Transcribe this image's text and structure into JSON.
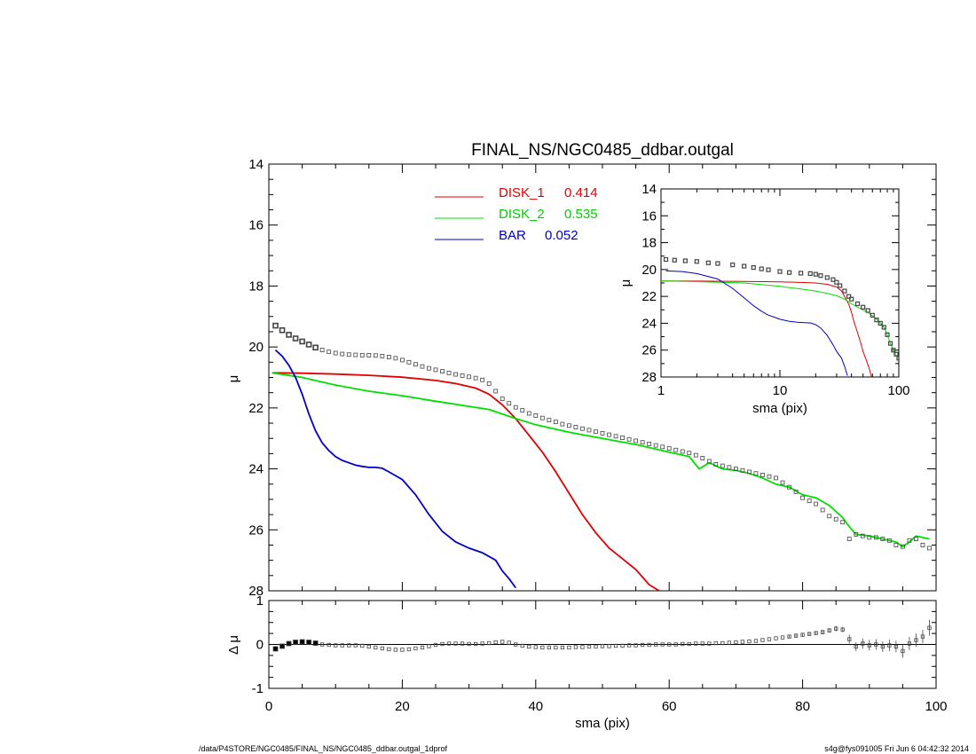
{
  "footer": {
    "left": "/data/P4STORE/NGC0485/FINAL_NS/NGC0485_ddbar.outgal_1dprof",
    "right": "s4g@fys091005  Fri Jun  6 04:42:32 2014"
  },
  "chart_data": [
    {
      "type": "line",
      "panel": "main",
      "title": "FINAL_NS/NGC0485_ddbar.outgal",
      "xlabel": "sma (pix)",
      "ylabel": "μ",
      "xlim": [
        0,
        100
      ],
      "ylim": [
        28,
        14
      ],
      "xticks": [
        "0",
        "20",
        "40",
        "60",
        "80",
        "100"
      ],
      "yticks": [
        "14",
        "16",
        "18",
        "20",
        "22",
        "24",
        "26",
        "28"
      ],
      "legend_position": "top-center",
      "data_markers": {
        "name": "data",
        "marker": "open-square",
        "x": [
          1,
          2,
          3,
          4,
          5,
          6,
          7,
          8,
          9,
          10,
          11,
          12,
          13,
          14,
          15,
          16,
          17,
          18,
          19,
          20,
          21,
          22,
          23,
          24,
          25,
          26,
          27,
          28,
          29,
          30,
          31,
          32,
          33,
          34,
          35,
          36,
          37,
          38,
          39,
          40,
          41,
          42,
          43,
          44,
          45,
          46,
          47,
          48,
          49,
          50,
          51,
          52,
          53,
          54,
          55,
          56,
          57,
          58,
          59,
          60,
          61,
          62,
          63,
          64,
          65,
          66,
          67,
          68,
          69,
          70,
          71,
          72,
          73,
          74,
          75,
          76,
          77,
          78,
          79,
          80,
          81,
          82,
          83,
          84,
          85,
          86,
          87,
          88,
          89,
          90,
          91,
          92,
          93,
          94,
          95,
          96,
          97,
          98,
          99
        ],
        "y": [
          19.3,
          19.45,
          19.6,
          19.72,
          19.82,
          19.92,
          20.02,
          20.1,
          20.16,
          20.2,
          20.23,
          20.25,
          20.26,
          20.27,
          20.27,
          20.28,
          20.3,
          20.33,
          20.37,
          20.43,
          20.5,
          20.57,
          20.64,
          20.7,
          20.75,
          20.8,
          20.85,
          20.9,
          20.94,
          20.98,
          21.02,
          21.08,
          21.2,
          21.45,
          21.7,
          21.85,
          21.98,
          22.08,
          22.18,
          22.25,
          22.33,
          22.4,
          22.46,
          22.53,
          22.58,
          22.63,
          22.68,
          22.73,
          22.78,
          22.83,
          22.88,
          22.93,
          22.98,
          23.03,
          23.08,
          23.13,
          23.18,
          23.23,
          23.28,
          23.33,
          23.38,
          23.43,
          23.48,
          23.55,
          23.65,
          23.75,
          23.85,
          23.9,
          23.95,
          24.0,
          24.05,
          24.1,
          24.15,
          24.2,
          24.25,
          24.3,
          24.45,
          24.6,
          24.75,
          24.95,
          25.05,
          25.15,
          25.35,
          25.55,
          25.65,
          25.75,
          26.3,
          26.15,
          26.2,
          26.25,
          26.25,
          26.3,
          26.35,
          26.5,
          26.55,
          26.35,
          26.3,
          26.5,
          26.6
        ]
      },
      "series": [
        {
          "name": "DISK_1",
          "value_label": "0.414",
          "color": "#e00000",
          "x": [
            0.5,
            5,
            10,
            15,
            20,
            25,
            28,
            31,
            33,
            35,
            37,
            39,
            41,
            43,
            45,
            47,
            49,
            51,
            53,
            55,
            57,
            58.5
          ],
          "y": [
            20.85,
            20.86,
            20.89,
            20.93,
            20.99,
            21.1,
            21.2,
            21.35,
            21.55,
            21.9,
            22.35,
            22.9,
            23.45,
            24.1,
            24.8,
            25.5,
            26.1,
            26.6,
            26.95,
            27.3,
            27.8,
            28.0
          ]
        },
        {
          "name": "DISK_2",
          "value_label": "0.535",
          "color": "#00e000",
          "x": [
            0.5,
            5,
            10,
            15,
            20,
            25,
            30,
            33,
            37,
            40,
            45,
            50,
            55,
            60,
            63,
            64.5,
            66,
            68,
            70,
            72,
            74,
            76,
            78,
            80,
            82,
            84,
            86,
            87,
            88,
            90,
            92,
            94,
            95,
            96,
            97,
            98,
            99
          ],
          "y": [
            20.85,
            21.0,
            21.25,
            21.45,
            21.6,
            21.78,
            21.95,
            22.05,
            22.35,
            22.55,
            22.8,
            23.0,
            23.2,
            23.45,
            23.6,
            24.0,
            23.8,
            24.0,
            24.05,
            24.15,
            24.3,
            24.5,
            24.6,
            24.85,
            24.95,
            25.2,
            25.6,
            25.9,
            26.15,
            26.2,
            26.3,
            26.4,
            26.55,
            26.4,
            26.2,
            26.25,
            26.3
          ]
        },
        {
          "name": "BAR",
          "value_label": "0.052",
          "color": "#0000c8",
          "x": [
            1,
            2,
            3,
            4,
            5,
            6,
            7,
            8,
            9,
            10,
            11,
            12,
            13,
            14,
            15,
            16,
            17,
            18,
            20,
            22,
            24,
            26,
            28,
            30,
            32,
            34,
            35,
            36,
            37
          ],
          "y": [
            20.1,
            20.3,
            20.6,
            21.0,
            21.55,
            22.2,
            22.75,
            23.15,
            23.4,
            23.6,
            23.72,
            23.8,
            23.88,
            23.92,
            23.95,
            23.95,
            23.98,
            24.1,
            24.35,
            24.85,
            25.5,
            26.05,
            26.4,
            26.6,
            26.75,
            27.0,
            27.35,
            27.6,
            27.9
          ]
        }
      ]
    },
    {
      "type": "scatter",
      "panel": "residual",
      "xlabel": "sma (pix)",
      "ylabel": "Δ μ",
      "xlim": [
        0,
        100
      ],
      "ylim": [
        -1,
        1
      ],
      "xticks": [
        "0",
        "20",
        "40",
        "60",
        "80",
        "100"
      ],
      "yticks": [
        "-1",
        "0",
        "1"
      ],
      "zero_line": 0,
      "x": [
        1,
        2,
        3,
        4,
        5,
        6,
        7,
        8,
        9,
        10,
        11,
        12,
        13,
        14,
        15,
        16,
        17,
        18,
        19,
        20,
        21,
        22,
        23,
        24,
        25,
        26,
        27,
        28,
        29,
        30,
        31,
        32,
        33,
        34,
        35,
        36,
        37,
        38,
        39,
        40,
        41,
        42,
        43,
        44,
        45,
        46,
        47,
        48,
        49,
        50,
        51,
        52,
        53,
        54,
        55,
        56,
        57,
        58,
        59,
        60,
        61,
        62,
        63,
        64,
        65,
        66,
        67,
        68,
        69,
        70,
        71,
        72,
        73,
        74,
        75,
        76,
        77,
        78,
        79,
        80,
        81,
        82,
        83,
        84,
        85,
        86,
        87,
        88,
        89,
        90,
        91,
        92,
        93,
        94,
        95,
        96,
        97,
        98,
        99
      ],
      "y": [
        -0.1,
        -0.04,
        0.02,
        0.05,
        0.06,
        0.05,
        0.03,
        0.0,
        -0.01,
        -0.02,
        -0.02,
        -0.02,
        -0.02,
        -0.03,
        -0.05,
        -0.07,
        -0.09,
        -0.11,
        -0.12,
        -0.12,
        -0.11,
        -0.09,
        -0.07,
        -0.04,
        -0.01,
        0.01,
        0.02,
        0.02,
        0.02,
        0.01,
        0.01,
        0.02,
        0.03,
        0.05,
        0.06,
        0.04,
        0.0,
        -0.03,
        -0.05,
        -0.06,
        -0.07,
        -0.07,
        -0.07,
        -0.07,
        -0.07,
        -0.06,
        -0.06,
        -0.05,
        -0.05,
        -0.04,
        -0.04,
        -0.03,
        -0.03,
        -0.02,
        -0.02,
        -0.01,
        -0.01,
        0.0,
        0.0,
        0.0,
        0.0,
        0.01,
        0.01,
        0.02,
        0.02,
        0.02,
        0.03,
        0.03,
        0.04,
        0.05,
        0.06,
        0.07,
        0.08,
        0.1,
        0.12,
        0.14,
        0.16,
        0.18,
        0.2,
        0.22,
        0.24,
        0.26,
        0.28,
        0.32,
        0.36,
        0.34,
        0.12,
        -0.05,
        0.02,
        -0.02,
        0.0,
        -0.05,
        -0.02,
        -0.05,
        -0.15,
        0.02,
        0.1,
        0.18,
        0.38
      ],
      "err": [
        0.02,
        0.02,
        0.02,
        0.02,
        0.02,
        0.02,
        0.02,
        0.02,
        0.02,
        0.02,
        0.02,
        0.02,
        0.02,
        0.02,
        0.02,
        0.02,
        0.02,
        0.02,
        0.02,
        0.02,
        0.02,
        0.02,
        0.02,
        0.02,
        0.02,
        0.02,
        0.02,
        0.02,
        0.02,
        0.02,
        0.02,
        0.02,
        0.02,
        0.02,
        0.02,
        0.02,
        0.02,
        0.02,
        0.02,
        0.02,
        0.02,
        0.02,
        0.02,
        0.02,
        0.02,
        0.02,
        0.02,
        0.02,
        0.02,
        0.02,
        0.02,
        0.02,
        0.02,
        0.02,
        0.02,
        0.02,
        0.02,
        0.02,
        0.02,
        0.02,
        0.02,
        0.02,
        0.02,
        0.02,
        0.02,
        0.02,
        0.02,
        0.03,
        0.03,
        0.03,
        0.03,
        0.03,
        0.03,
        0.03,
        0.03,
        0.03,
        0.03,
        0.04,
        0.04,
        0.04,
        0.04,
        0.04,
        0.05,
        0.05,
        0.06,
        0.06,
        0.1,
        0.1,
        0.12,
        0.12,
        0.12,
        0.12,
        0.13,
        0.13,
        0.15,
        0.15,
        0.15,
        0.15,
        0.18
      ]
    },
    {
      "type": "line",
      "panel": "inset",
      "xscale": "log",
      "xlabel": "sma (pix)",
      "ylabel": "μ",
      "xlim": [
        1,
        100
      ],
      "ylim": [
        28,
        14
      ],
      "xticks": [
        "1",
        "10",
        "100"
      ],
      "yticks": [
        "14",
        "16",
        "18",
        "20",
        "22",
        "24",
        "26",
        "28"
      ],
      "data_markers": {
        "marker": "open-square",
        "x": [
          1.1,
          1.3,
          1.6,
          2,
          2.5,
          3,
          4,
          5,
          6,
          7,
          8,
          10,
          12,
          15,
          18,
          20,
          22,
          25,
          28,
          30,
          32,
          35,
          38,
          40,
          45,
          50,
          55,
          60,
          65,
          70,
          75,
          80,
          85,
          90,
          95,
          100
        ],
        "y": [
          19.25,
          19.3,
          19.35,
          19.4,
          19.5,
          19.55,
          19.65,
          19.75,
          19.85,
          19.95,
          20.02,
          20.15,
          20.22,
          20.27,
          20.3,
          20.35,
          20.45,
          20.6,
          20.75,
          20.95,
          21.2,
          21.6,
          22.0,
          22.2,
          22.55,
          22.8,
          23.05,
          23.4,
          23.75,
          24.0,
          24.3,
          24.85,
          25.5,
          26.0,
          26.3,
          26.6
        ]
      },
      "series": [
        {
          "name": "DISK_1",
          "color": "#e00000",
          "x": [
            1,
            2,
            5,
            10,
            15,
            20,
            25,
            30,
            33,
            35,
            38,
            40,
            42,
            45,
            48,
            50,
            53,
            56,
            59
          ],
          "y": [
            20.85,
            20.86,
            20.88,
            20.92,
            20.96,
            21.0,
            21.1,
            21.3,
            21.6,
            22.0,
            22.6,
            23.2,
            23.9,
            24.7,
            25.5,
            26.1,
            26.7,
            27.3,
            28.0
          ]
        },
        {
          "name": "DISK_2",
          "color": "#00e000",
          "x": [
            1,
            2,
            5,
            10,
            15,
            20,
            25,
            30,
            35,
            40,
            45,
            50,
            55,
            60,
            65,
            70,
            75,
            80,
            85,
            90,
            95,
            100
          ],
          "y": [
            20.85,
            20.9,
            21.0,
            21.25,
            21.45,
            21.6,
            21.78,
            21.95,
            22.2,
            22.55,
            22.8,
            23.0,
            23.2,
            23.45,
            23.7,
            24.0,
            24.3,
            24.85,
            25.5,
            26.0,
            26.4,
            26.5
          ]
        },
        {
          "name": "BAR",
          "color": "#0000c8",
          "x": [
            1.1,
            1.5,
            2,
            3,
            4,
            5,
            6,
            7,
            8,
            9,
            10,
            12,
            14,
            16,
            18,
            20,
            22,
            25,
            28,
            30,
            33,
            35,
            37
          ],
          "y": [
            20.1,
            20.15,
            20.3,
            20.7,
            21.4,
            22.1,
            22.7,
            23.1,
            23.4,
            23.55,
            23.7,
            23.85,
            23.92,
            23.95,
            23.97,
            24.1,
            24.35,
            24.9,
            25.6,
            26.1,
            26.6,
            27.2,
            27.9
          ]
        }
      ]
    }
  ]
}
